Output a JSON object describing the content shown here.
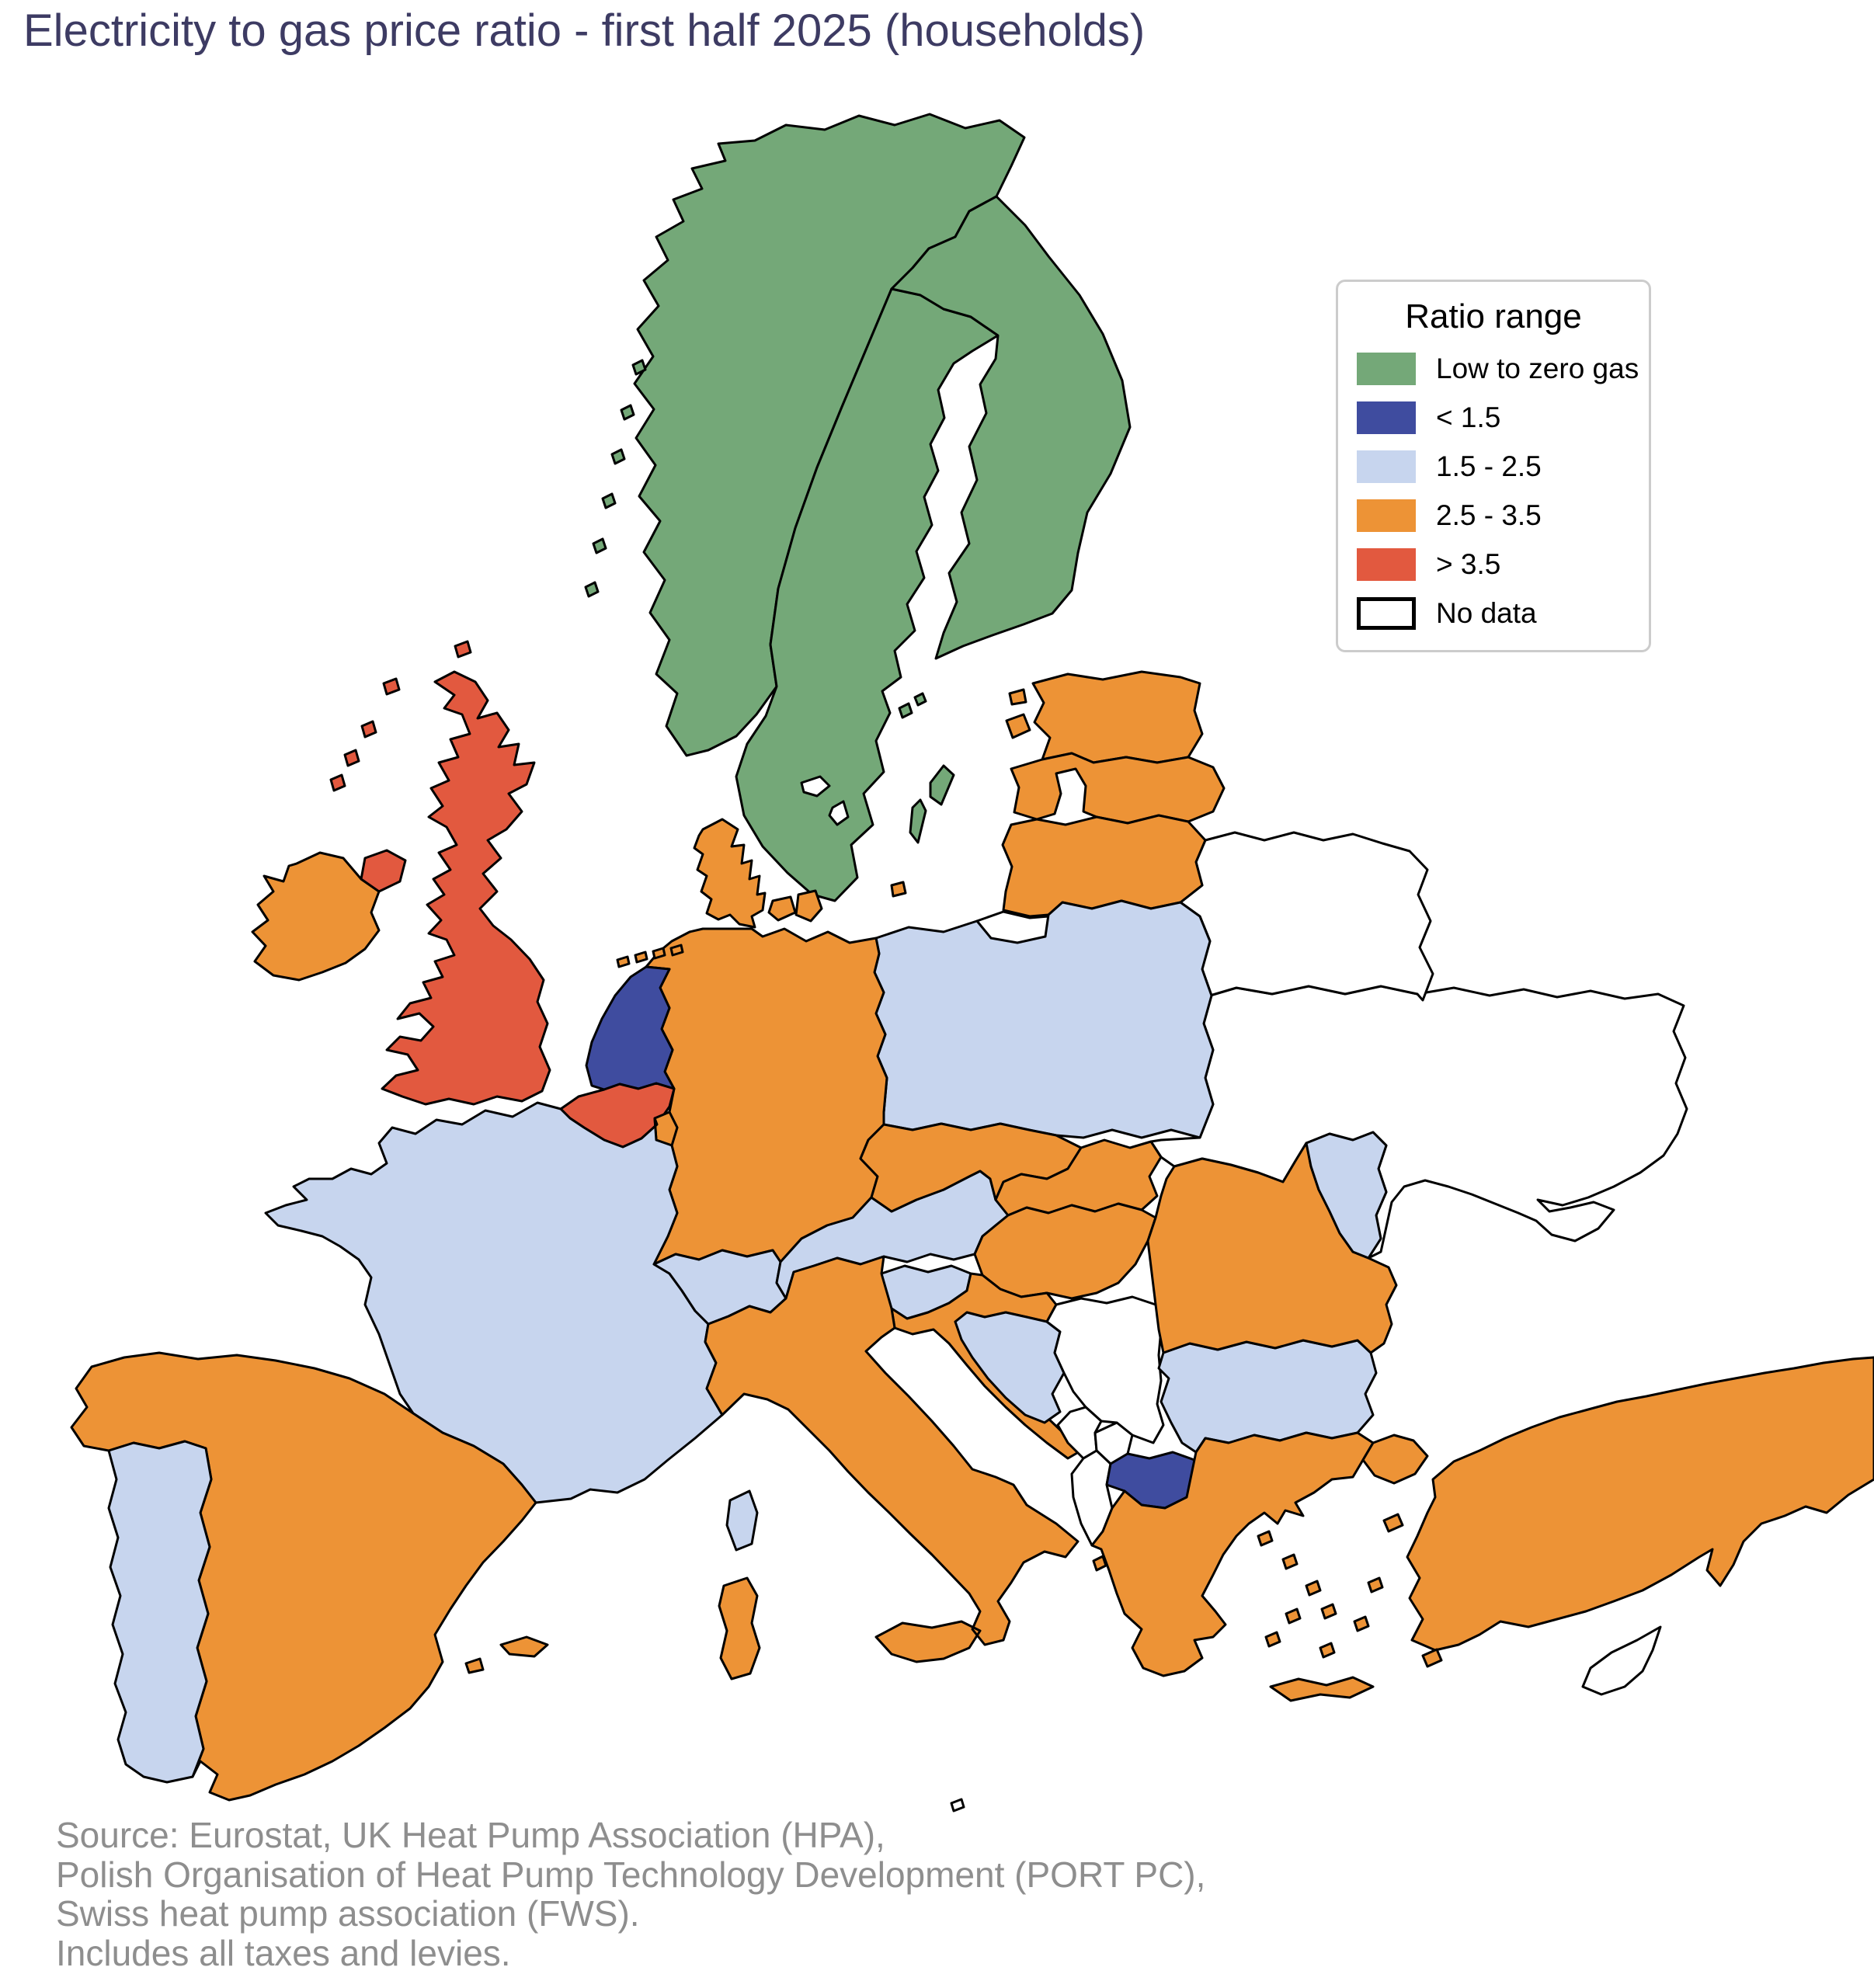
{
  "title": "Electricity to gas price ratio - first half 2025 (households)",
  "legend": {
    "title": "Ratio range",
    "items": [
      {
        "category": "low_zero_gas",
        "label": "Low to zero gas",
        "color": "#74a878",
        "outlined": false
      },
      {
        "category": "lt_1_5",
        "label": "< 1.5",
        "color": "#3f4c9f",
        "outlined": false
      },
      {
        "category": "r_1_5_2_5",
        "label": "1.5 - 2.5",
        "color": "#c7d5ee",
        "outlined": false
      },
      {
        "category": "r_2_5_3_5",
        "label": "2.5 - 3.5",
        "color": "#ed9336",
        "outlined": false
      },
      {
        "category": "gt_3_5",
        "label": "> 3.5",
        "color": "#e2593f",
        "outlined": false
      },
      {
        "category": "no_data",
        "label": "No data",
        "color": "#ffffff",
        "outlined": true
      }
    ]
  },
  "source_lines": [
    "Source: Eurostat, UK Heat Pump Association (HPA),",
    "Polish Organisation of Heat Pump Technology Development (PORT PC),",
    "Swiss heat pump association (FWS).",
    "Includes all taxes and levies."
  ],
  "map": {
    "border_color": "#000000",
    "sea_color": "#ffffff",
    "countries": [
      {
        "id": "ukraine",
        "name": "Ukraine",
        "category": "no_data"
      },
      {
        "id": "belarus",
        "name": "Belarus",
        "category": "no_data"
      },
      {
        "id": "kaliningrad",
        "name": "Kaliningrad (Russia)",
        "category": "no_data"
      },
      {
        "id": "norway",
        "name": "Norway",
        "category": "low_zero_gas"
      },
      {
        "id": "sweden",
        "name": "Sweden",
        "category": "low_zero_gas"
      },
      {
        "id": "finland",
        "name": "Finland",
        "category": "low_zero_gas"
      },
      {
        "id": "estonia",
        "name": "Estonia",
        "category": "r_2_5_3_5"
      },
      {
        "id": "latvia",
        "name": "Latvia",
        "category": "r_2_5_3_5"
      },
      {
        "id": "lithuania",
        "name": "Lithuania",
        "category": "r_2_5_3_5"
      },
      {
        "id": "poland",
        "name": "Poland",
        "category": "r_1_5_2_5"
      },
      {
        "id": "germany",
        "name": "Germany",
        "category": "r_2_5_3_5"
      },
      {
        "id": "denmark",
        "name": "Denmark",
        "category": "r_2_5_3_5"
      },
      {
        "id": "netherlands",
        "name": "Netherlands",
        "category": "lt_1_5"
      },
      {
        "id": "belgium",
        "name": "Belgium",
        "category": "gt_3_5"
      },
      {
        "id": "luxembourg",
        "name": "Luxembourg",
        "category": "r_2_5_3_5"
      },
      {
        "id": "france",
        "name": "France",
        "category": "r_1_5_2_5"
      },
      {
        "id": "switzerland",
        "name": "Switzerland",
        "category": "r_1_5_2_5"
      },
      {
        "id": "austria",
        "name": "Austria",
        "category": "r_1_5_2_5"
      },
      {
        "id": "czechia",
        "name": "Czechia",
        "category": "r_2_5_3_5"
      },
      {
        "id": "slovakia",
        "name": "Slovakia",
        "category": "r_2_5_3_5"
      },
      {
        "id": "hungary",
        "name": "Hungary",
        "category": "r_2_5_3_5"
      },
      {
        "id": "slovenia",
        "name": "Slovenia",
        "category": "r_1_5_2_5"
      },
      {
        "id": "croatia",
        "name": "Croatia",
        "category": "r_2_5_3_5"
      },
      {
        "id": "bosnia",
        "name": "Bosnia and Herzegovina",
        "category": "r_1_5_2_5"
      },
      {
        "id": "serbia",
        "name": "Serbia",
        "category": "no_data"
      },
      {
        "id": "montenegro",
        "name": "Montenegro",
        "category": "no_data"
      },
      {
        "id": "kosovo",
        "name": "Kosovo",
        "category": "no_data"
      },
      {
        "id": "albania",
        "name": "Albania",
        "category": "no_data"
      },
      {
        "id": "north_macedonia",
        "name": "North Macedonia",
        "category": "lt_1_5"
      },
      {
        "id": "bulgaria",
        "name": "Bulgaria",
        "category": "r_1_5_2_5"
      },
      {
        "id": "romania",
        "name": "Romania",
        "category": "r_2_5_3_5"
      },
      {
        "id": "moldova",
        "name": "Moldova",
        "category": "r_1_5_2_5"
      },
      {
        "id": "greece",
        "name": "Greece",
        "category": "r_2_5_3_5"
      },
      {
        "id": "turkey",
        "name": "Turkey",
        "category": "r_2_5_3_5"
      },
      {
        "id": "cyprus",
        "name": "Cyprus",
        "category": "no_data"
      },
      {
        "id": "spain",
        "name": "Spain",
        "category": "r_2_5_3_5"
      },
      {
        "id": "portugal",
        "name": "Portugal",
        "category": "r_1_5_2_5"
      },
      {
        "id": "italy",
        "name": "Italy",
        "category": "r_2_5_3_5"
      },
      {
        "id": "ireland",
        "name": "Ireland",
        "category": "r_2_5_3_5"
      },
      {
        "id": "uk",
        "name": "United Kingdom",
        "category": "gt_3_5"
      }
    ]
  }
}
